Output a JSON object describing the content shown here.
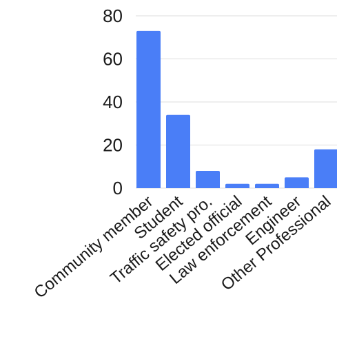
{
  "chart_data": {
    "type": "bar",
    "title": "",
    "xlabel": "",
    "ylabel": "",
    "categories": [
      "Community member",
      "Student",
      "Traffic safety pro.",
      "Elected official",
      "Law enforcement",
      "Engineer",
      "Other Professional"
    ],
    "values": [
      73,
      34,
      8,
      2,
      2,
      5,
      18
    ],
    "ylim": [
      0,
      80
    ],
    "yticks": [
      0,
      20,
      40,
      60,
      80
    ],
    "grid": true,
    "legend": "none",
    "bar_color": "#4a7ef7"
  }
}
